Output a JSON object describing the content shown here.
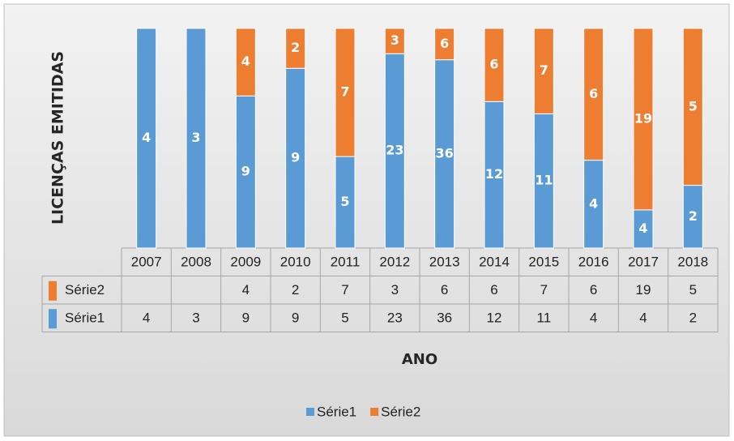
{
  "chart_data": {
    "type": "bar",
    "stacked_percent": true,
    "y_label": "LICENÇAS EMITIDAS",
    "x_label": "ANO",
    "categories": [
      "2007",
      "2008",
      "2009",
      "2010",
      "2011",
      "2012",
      "2013",
      "2014",
      "2015",
      "2016",
      "2017",
      "2018"
    ],
    "series": [
      {
        "name": "Série1",
        "color": "#5b9bd5",
        "values": [
          4,
          3,
          9,
          9,
          5,
          23,
          36,
          12,
          11,
          4,
          4,
          2
        ]
      },
      {
        "name": "Série2",
        "color": "#ed7d31",
        "values": [
          null,
          null,
          4,
          2,
          7,
          3,
          6,
          6,
          7,
          6,
          19,
          5
        ]
      }
    ],
    "legend": "bottom"
  }
}
